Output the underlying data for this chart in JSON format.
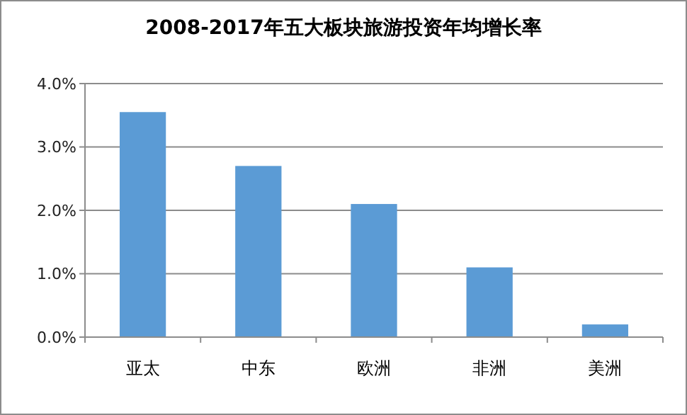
{
  "chart_data": {
    "type": "bar",
    "title": "2008-2017年五大板块旅游投资年均增长率",
    "categories": [
      "亚太",
      "中东",
      "欧洲",
      "非洲",
      "美洲"
    ],
    "values": [
      3.55,
      2.7,
      2.1,
      1.1,
      0.2
    ],
    "color": "#5b9bd5",
    "ylim": [
      0,
      4
    ],
    "yticks": [
      {
        "value": 0,
        "label": "0.0%"
      },
      {
        "value": 1,
        "label": "1.0%"
      },
      {
        "value": 2,
        "label": "2.0%"
      },
      {
        "value": 3,
        "label": "3.0%"
      },
      {
        "value": 4,
        "label": "4.0%"
      }
    ],
    "grid": "y"
  }
}
